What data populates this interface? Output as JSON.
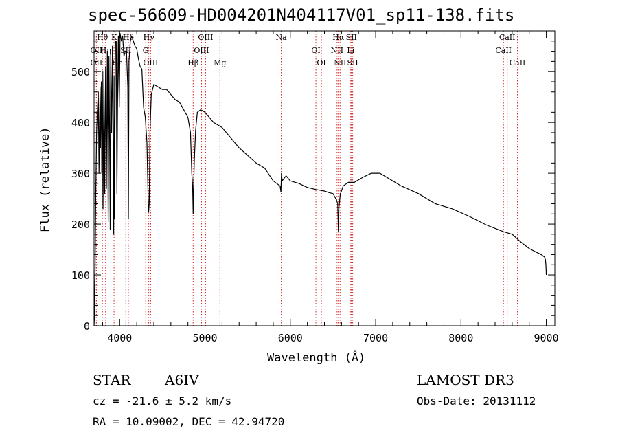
{
  "chart_data": {
    "type": "line",
    "title": "spec-56609-HD004201N404117V01_sp11-138.fits",
    "xlabel": "Wavelength (Å)",
    "ylabel": "Flux (relative)",
    "xlim": [
      3700,
      9100
    ],
    "ylim": [
      0,
      580
    ],
    "xticks": [
      4000,
      5000,
      6000,
      7000,
      8000,
      9000
    ],
    "yticks": [
      0,
      100,
      200,
      300,
      400,
      500
    ],
    "grid": false,
    "series": [
      {
        "name": "flux",
        "x": [
          3700,
          3705,
          3712,
          3720,
          3730,
          3740,
          3750,
          3758,
          3770,
          3775,
          3785,
          3790,
          3797,
          3805,
          3815,
          3825,
          3835,
          3845,
          3855,
          3866,
          3875,
          3885,
          3889,
          3895,
          3905,
          3915,
          3925,
          3930,
          3934,
          3940,
          3950,
          3960,
          3968,
          3975,
          3985,
          3995,
          4005,
          4020,
          4035,
          4050,
          4065,
          4080,
          4095,
          4102,
          4110,
          4125,
          4140,
          4160,
          4180,
          4200,
          4220,
          4240,
          4260,
          4280,
          4300,
          4320,
          4335,
          4340,
          4346,
          4355,
          4370,
          4400,
          4450,
          4500,
          4550,
          4600,
          4650,
          4700,
          4750,
          4800,
          4830,
          4845,
          4855,
          4861,
          4866,
          4875,
          4890,
          4910,
          4950,
          5000,
          5100,
          5200,
          5300,
          5400,
          5500,
          5600,
          5700,
          5800,
          5880,
          5890,
          5896,
          5905,
          5950,
          6000,
          6100,
          6200,
          6300,
          6400,
          6450,
          6500,
          6540,
          6555,
          6563,
          6570,
          6585,
          6620,
          6680,
          6750,
          6850,
          6950,
          7050,
          7150,
          7300,
          7500,
          7700,
          7900,
          8100,
          8300,
          8500,
          8600,
          8700,
          8800,
          8880,
          8940,
          8980,
          8990,
          8995,
          9000
        ],
        "y": [
          0,
          20,
          110,
          260,
          380,
          430,
          460,
          300,
          470,
          350,
          480,
          300,
          500,
          230,
          500,
          260,
          510,
          270,
          540,
          205,
          530,
          300,
          190,
          540,
          380,
          550,
          300,
          180,
          490,
          210,
          560,
          560,
          260,
          430,
          570,
          430,
          575,
          560,
          570,
          530,
          540,
          540,
          470,
          210,
          520,
          560,
          570,
          560,
          550,
          545,
          525,
          510,
          505,
          430,
          410,
          360,
          240,
          225,
          240,
          380,
          455,
          475,
          470,
          465,
          465,
          455,
          445,
          440,
          425,
          410,
          380,
          300,
          275,
          220,
          270,
          325,
          385,
          420,
          425,
          420,
          400,
          390,
          370,
          350,
          335,
          320,
          310,
          285,
          275,
          263,
          300,
          285,
          295,
          285,
          280,
          272,
          268,
          265,
          262,
          260,
          248,
          240,
          185,
          232,
          258,
          275,
          282,
          282,
          292,
          300,
          300,
          290,
          275,
          260,
          240,
          230,
          215,
          198,
          185,
          180,
          165,
          152,
          145,
          140,
          135,
          130,
          120,
          100
        ]
      }
    ],
    "lines": [
      {
        "label": "Hθ",
        "wave": 3798
      },
      {
        "label": "OII",
        "wave": 3727
      },
      {
        "label": "OII",
        "wave": 3727
      },
      {
        "label": "K",
        "wave": 3934
      },
      {
        "label": "Hη",
        "wave": 3835
      },
      {
        "label": "Hε",
        "wave": 3970
      },
      {
        "label": "Hδ",
        "wave": 4102
      },
      {
        "label": "SII",
        "wave": 4072
      },
      {
        "label": "OIII",
        "wave": 4363
      },
      {
        "label": "Hγ",
        "wave": 4341
      },
      {
        "label": "G",
        "wave": 4305
      },
      {
        "label": "Hβ",
        "wave": 4861
      },
      {
        "label": "OIII",
        "wave": 5007
      },
      {
        "label": "OIII",
        "wave": 4959
      },
      {
        "label": "Mg",
        "wave": 5175
      },
      {
        "label": "Na",
        "wave": 5894
      },
      {
        "label": "OI",
        "wave": 6300
      },
      {
        "label": "OI",
        "wave": 6364
      },
      {
        "label": "Hα",
        "wave": 6563
      },
      {
        "label": "NII",
        "wave": 6548
      },
      {
        "label": "NII",
        "wave": 6583
      },
      {
        "label": "SII",
        "wave": 6716
      },
      {
        "label": "Li",
        "wave": 6708
      },
      {
        "label": "SII",
        "wave": 6731
      },
      {
        "label": "CaII",
        "wave": 8542
      },
      {
        "label": "CaII",
        "wave": 8498
      },
      {
        "label": "CaII",
        "wave": 8662
      }
    ]
  },
  "info": {
    "object_class": "STAR",
    "subclass": "A6IV",
    "cz": "cz = -21.6 ± 5.2 km/s",
    "radec": "RA =  10.09002, DEC =  42.94720",
    "survey": "LAMOST DR3",
    "obs_date": "Obs-Date: 20131112"
  }
}
